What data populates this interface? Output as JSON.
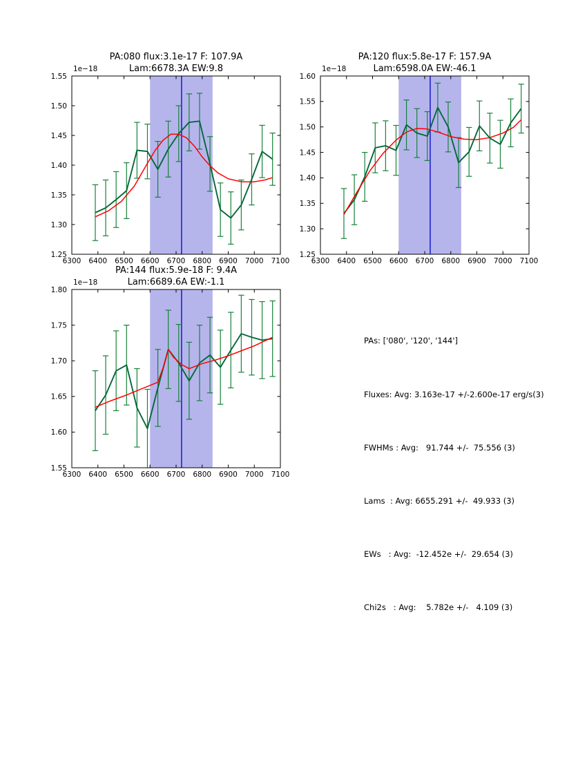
{
  "colors": {
    "background": "#ffffff",
    "axes": "#000000",
    "data_line": "#056839",
    "error_bar": "#168138",
    "fit_line": "#ff0000",
    "shaded_region": "#b5b5ec",
    "center_line": "#0000cc",
    "text": "#000000"
  },
  "stats": {
    "lines": [
      "PAs: ['080', '120', '144']",
      "Fluxes: Avg: 3.163e-17 +/-2.600e-17 erg/s(3)",
      "FWHMs : Avg:   91.744 +/-  75.556 (3)",
      "Lams  : Avg: 6655.291 +/-  49.933 (3)",
      "EWs   : Avg:  -12.452e +/-  29.654 (3)",
      "Chi2s   : Avg:    5.782e +/-   4.109 (3)"
    ]
  },
  "chart_data": [
    {
      "type": "line",
      "name": "pa080",
      "title_line1": "PA:080 flux:3.1e-17 F: 107.9A",
      "title_line2": "Lam:6678.3A EW:9.8",
      "offset_label": "1e−18",
      "xlim": [
        6300,
        7100
      ],
      "ylim": [
        1.25,
        1.55
      ],
      "xticks": [
        6300,
        6400,
        6500,
        6600,
        6700,
        6800,
        6900,
        7000,
        7100
      ],
      "yticks": [
        1.25,
        1.3,
        1.35,
        1.4,
        1.45,
        1.5,
        1.55
      ],
      "shaded_region": [
        6600,
        6840
      ],
      "vline": 6721,
      "grid": false,
      "x": [
        6390,
        6430,
        6470,
        6510,
        6550,
        6590,
        6630,
        6670,
        6710,
        6750,
        6790,
        6830,
        6870,
        6910,
        6950,
        6990,
        7030,
        7070
      ],
      "y": [
        1.32,
        1.328,
        1.342,
        1.357,
        1.425,
        1.423,
        1.393,
        1.427,
        1.453,
        1.472,
        1.474,
        1.402,
        1.325,
        1.311,
        1.333,
        1.376,
        1.423,
        1.41
      ],
      "yerr": [
        0.047,
        0.047,
        0.047,
        0.047,
        0.047,
        0.046,
        0.047,
        0.047,
        0.047,
        0.048,
        0.047,
        0.046,
        0.045,
        0.044,
        0.042,
        0.043,
        0.044,
        0.044
      ],
      "fit_x": [
        6390,
        6440,
        6490,
        6540,
        6590,
        6620,
        6650,
        6680,
        6710,
        6740,
        6770,
        6800,
        6830,
        6860,
        6900,
        6950,
        7000,
        7040,
        7070
      ],
      "fit_y": [
        1.313,
        1.323,
        1.339,
        1.365,
        1.403,
        1.425,
        1.442,
        1.452,
        1.452,
        1.446,
        1.432,
        1.414,
        1.399,
        1.387,
        1.377,
        1.372,
        1.372,
        1.375,
        1.379
      ]
    },
    {
      "type": "line",
      "name": "pa120",
      "title_line1": "PA:120 flux:5.8e-17 F: 157.9A",
      "title_line2": "Lam:6598.0A EW:-46.1",
      "offset_label": "1e−18",
      "xlim": [
        6300,
        7100
      ],
      "ylim": [
        1.25,
        1.6
      ],
      "xticks": [
        6300,
        6400,
        6500,
        6600,
        6700,
        6800,
        6900,
        7000,
        7100
      ],
      "yticks": [
        1.25,
        1.3,
        1.35,
        1.4,
        1.45,
        1.5,
        1.55,
        1.6
      ],
      "shaded_region": [
        6600,
        6840
      ],
      "vline": 6721,
      "grid": false,
      "x": [
        6390,
        6430,
        6470,
        6510,
        6550,
        6590,
        6630,
        6670,
        6710,
        6750,
        6790,
        6830,
        6870,
        6910,
        6950,
        6990,
        7030,
        7070
      ],
      "y": [
        1.33,
        1.357,
        1.402,
        1.459,
        1.463,
        1.454,
        1.504,
        1.488,
        1.482,
        1.538,
        1.5,
        1.43,
        1.451,
        1.502,
        1.478,
        1.466,
        1.508,
        1.536
      ],
      "yerr": [
        0.049,
        0.049,
        0.048,
        0.049,
        0.049,
        0.049,
        0.049,
        0.048,
        0.048,
        0.048,
        0.049,
        0.049,
        0.048,
        0.049,
        0.049,
        0.047,
        0.047,
        0.048
      ],
      "fit_x": [
        6390,
        6440,
        6490,
        6540,
        6590,
        6630,
        6670,
        6710,
        6750,
        6800,
        6850,
        6900,
        6950,
        7000,
        7040,
        7070
      ],
      "fit_y": [
        1.328,
        1.372,
        1.414,
        1.448,
        1.474,
        1.49,
        1.497,
        1.496,
        1.49,
        1.481,
        1.476,
        1.475,
        1.479,
        1.488,
        1.499,
        1.514
      ]
    },
    {
      "type": "line",
      "name": "pa144",
      "title_line1": "PA:144 flux:5.9e-18 F: 9.4A",
      "title_line2": "Lam:6689.6A EW:-1.1",
      "offset_label": "1e−18",
      "xlim": [
        6300,
        7100
      ],
      "ylim": [
        1.55,
        1.8
      ],
      "xticks": [
        6300,
        6400,
        6500,
        6600,
        6700,
        6800,
        6900,
        7000,
        7100
      ],
      "yticks": [
        1.55,
        1.6,
        1.65,
        1.7,
        1.75,
        1.8
      ],
      "shaded_region": [
        6600,
        6840
      ],
      "vline": 6721,
      "grid": false,
      "x": [
        6390,
        6430,
        6470,
        6510,
        6550,
        6590,
        6630,
        6670,
        6710,
        6750,
        6790,
        6830,
        6870,
        6910,
        6950,
        6990,
        7030,
        7070
      ],
      "y": [
        1.63,
        1.652,
        1.686,
        1.694,
        1.634,
        1.605,
        1.662,
        1.716,
        1.697,
        1.672,
        1.697,
        1.708,
        1.691,
        1.715,
        1.738,
        1.733,
        1.729,
        1.731
      ],
      "yerr": [
        0.056,
        0.055,
        0.056,
        0.056,
        0.055,
        0.055,
        0.054,
        0.055,
        0.054,
        0.054,
        0.053,
        0.053,
        0.052,
        0.053,
        0.054,
        0.053,
        0.054,
        0.053
      ],
      "fit_x": [
        6390,
        6450,
        6510,
        6570,
        6630,
        6650,
        6670,
        6690,
        6720,
        6750,
        6800,
        6850,
        6900,
        6950,
        7000,
        7070
      ],
      "fit_y": [
        1.635,
        1.644,
        1.652,
        1.661,
        1.67,
        1.69,
        1.716,
        1.705,
        1.695,
        1.689,
        1.696,
        1.701,
        1.707,
        1.714,
        1.721,
        1.733
      ]
    }
  ]
}
